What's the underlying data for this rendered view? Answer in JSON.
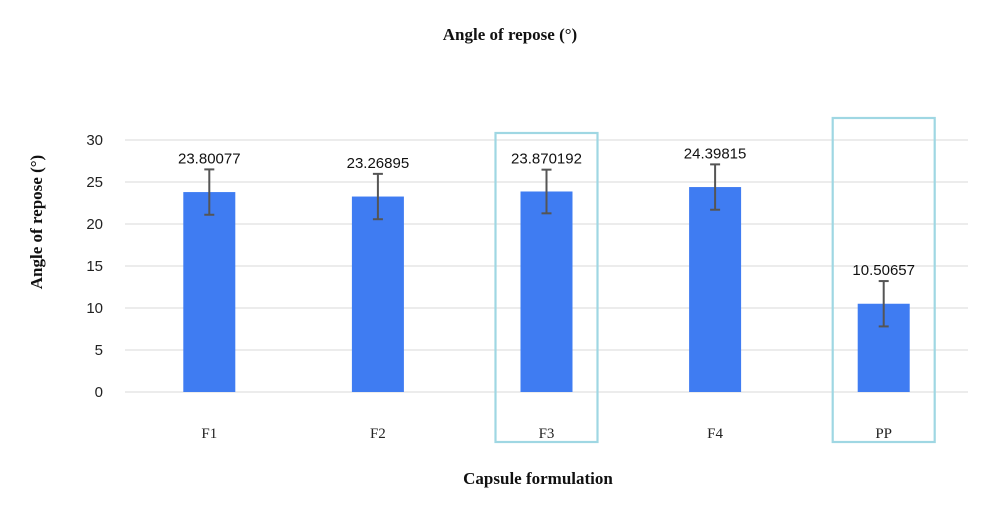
{
  "chart_data": {
    "type": "bar",
    "title": "Angle of repose (°)",
    "xlabel": "Capsule formulation",
    "ylabel": "Angle of repose (°)",
    "categories": [
      "F1",
      "F2",
      "F3",
      "F4",
      "PP"
    ],
    "values": [
      23.80077,
      23.26895,
      23.870192,
      24.39815,
      10.50657
    ],
    "value_labels": [
      "23.80077",
      "23.26895",
      "23.870192",
      "24.39815",
      "10.50657"
    ],
    "error": [
      2.7,
      2.7,
      2.6,
      2.7,
      2.7
    ],
    "ylim": [
      0,
      30
    ],
    "yticks": [
      0,
      5,
      10,
      15,
      20,
      25,
      30
    ],
    "grid": true,
    "legend": "none",
    "bar_color": "#3f7cf2",
    "highlighted_categories": [
      "F3",
      "PP"
    ],
    "highlight_color": "#9fd7e3"
  }
}
